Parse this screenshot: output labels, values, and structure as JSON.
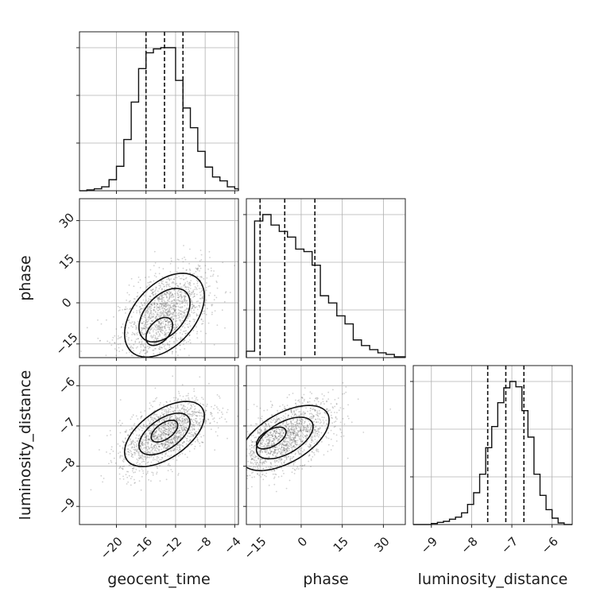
{
  "chart_data": {
    "type": "corner",
    "parameters": [
      "geocent_time",
      "phase",
      "luminosity_distance"
    ],
    "axes": {
      "geocent_time": {
        "range": [
          -25,
          -3.5
        ],
        "ticks": [
          -20,
          -16,
          -12,
          -8,
          -4
        ],
        "tick_labels": [
          "−20",
          "−16",
          "−12",
          "−8",
          "−4"
        ]
      },
      "phase": {
        "range": [
          -20,
          38
        ],
        "ticks": [
          -15,
          0,
          15,
          30
        ],
        "tick_labels": [
          "−15",
          "0",
          "15",
          "30"
        ]
      },
      "luminosity_distance": {
        "range": [
          -9.45,
          -5.5
        ],
        "ticks": [
          -9,
          -8,
          -7,
          -6
        ],
        "tick_labels": [
          "−9",
          "−8",
          "−7",
          "−6"
        ]
      }
    },
    "histograms": [
      {
        "param": "geocent_time",
        "bin_edges": [
          -25,
          -24,
          -23,
          -22,
          -21,
          -20,
          -19,
          -18,
          -17,
          -16,
          -15,
          -14,
          -13,
          -12,
          -11,
          -10,
          -9,
          -8,
          -7,
          -6,
          -5,
          -4,
          -3.5
        ],
        "counts": [
          0,
          2,
          5,
          10,
          28,
          62,
          130,
          225,
          310,
          350,
          360,
          363,
          363,
          280,
          210,
          160,
          100,
          60,
          35,
          25,
          10,
          5,
          0
        ],
        "quantiles": [
          -16,
          -13.5,
          -11
        ]
      },
      {
        "param": "phase",
        "bin_edges": [
          -20,
          -17,
          -14,
          -11,
          -8,
          -5,
          -2,
          1,
          4,
          7,
          10,
          13,
          16,
          19,
          22,
          25,
          28,
          31,
          34,
          38
        ],
        "counts": [
          8,
          170,
          178,
          165,
          157,
          150,
          135,
          132,
          115,
          77,
          68,
          52,
          42,
          22,
          15,
          10,
          6,
          4,
          1
        ],
        "quantiles": [
          -15,
          -6,
          5
        ]
      },
      {
        "param": "luminosity_distance",
        "bin_edges": [
          -9.45,
          -9.3,
          -9.15,
          -9.0,
          -8.85,
          -8.7,
          -8.55,
          -8.4,
          -8.25,
          -8.1,
          -7.95,
          -7.8,
          -7.65,
          -7.5,
          -7.35,
          -7.2,
          -7.05,
          -6.9,
          -6.75,
          -6.6,
          -6.45,
          -6.3,
          -6.15,
          -6.0,
          -5.85,
          -5.7,
          -5.5
        ],
        "counts": [
          0,
          0,
          0,
          2,
          4,
          6,
          10,
          14,
          22,
          38,
          60,
          95,
          145,
          185,
          230,
          258,
          270,
          260,
          215,
          165,
          95,
          55,
          28,
          12,
          3,
          0
        ],
        "quantiles": [
          -7.6,
          -7.15,
          -6.7
        ]
      }
    ],
    "joint": [
      {
        "x": "geocent_time",
        "y": "phase",
        "mean": [
          -13.5,
          -4.5
        ],
        "sd": [
          3.0,
          8.5
        ],
        "corr": 0.45,
        "peak": [
          -14.5,
          -13
        ]
      },
      {
        "x": "geocent_time",
        "y": "luminosity_distance",
        "mean": [
          -13.5,
          -7.2
        ],
        "sd": [
          3.0,
          0.45
        ],
        "corr": 0.55,
        "peak": [
          -13.5,
          -7.1
        ]
      },
      {
        "x": "phase",
        "y": "luminosity_distance",
        "mean": [
          -6,
          -7.3
        ],
        "sd": [
          9.0,
          0.45
        ],
        "corr": 0.55,
        "peak": [
          -13,
          -7.3
        ]
      }
    ],
    "grid": true
  }
}
